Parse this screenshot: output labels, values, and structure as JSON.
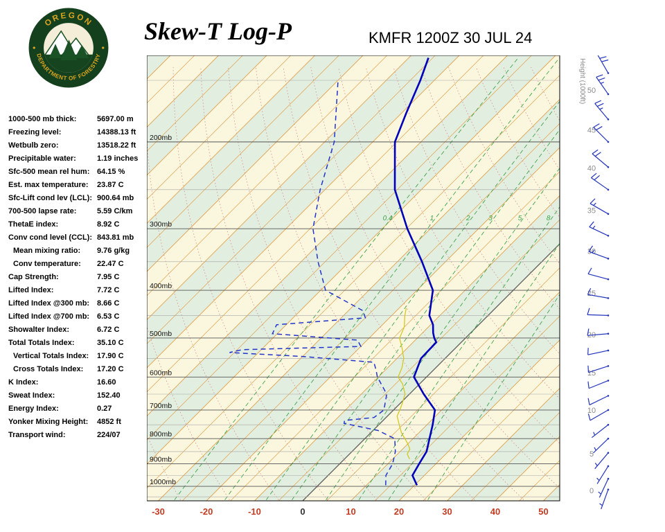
{
  "header": {
    "title": "Skew-T Log-P",
    "station": "KMFR 1200Z 30 JUL 24"
  },
  "logo": {
    "top": "OREGON",
    "bottom": "DEPARTMENT OF FORESTRY"
  },
  "stats": [
    {
      "label": "1000-500 mb thick:",
      "value": "5697.00 m",
      "indent": false
    },
    {
      "label": "Freezing level:",
      "value": "14388.13 ft",
      "indent": false
    },
    {
      "label": "Wetbulb zero:",
      "value": "13518.22 ft",
      "indent": false
    },
    {
      "label": "Precipitable water:",
      "value": "1.19 inches",
      "indent": false
    },
    {
      "label": "Sfc-500 mean rel hum:",
      "value": "64.15 %",
      "indent": false
    },
    {
      "label": "Est. max temperature:",
      "value": "23.87 C",
      "indent": false
    },
    {
      "label": "Sfc-Lift cond lev (LCL):",
      "value": "900.64 mb",
      "indent": false
    },
    {
      "label": "700-500 lapse rate:",
      "value": "5.59 C/km",
      "indent": false
    },
    {
      "label": "ThetaE index:",
      "value": "8.92 C",
      "indent": false
    },
    {
      "label": "Conv cond level (CCL):",
      "value": "843.81 mb",
      "indent": false
    },
    {
      "label": "Mean mixing ratio:",
      "value": "9.76 g/kg",
      "indent": true
    },
    {
      "label": "Conv temperature:",
      "value": "22.47 C",
      "indent": true
    },
    {
      "label": "Cap Strength:",
      "value": "7.95 C",
      "indent": false
    },
    {
      "label": "Lifted Index:",
      "value": "7.72 C",
      "indent": false
    },
    {
      "label": "Lifted Index @300 mb:",
      "value": "8.66 C",
      "indent": false
    },
    {
      "label": "Lifted Index @700 mb:",
      "value": "6.53 C",
      "indent": false
    },
    {
      "label": "Showalter Index:",
      "value": "6.72 C",
      "indent": false
    },
    {
      "label": "Total Totals Index:",
      "value": "35.10 C",
      "indent": false
    },
    {
      "label": "Vertical Totals Index:",
      "value": "17.90 C",
      "indent": true
    },
    {
      "label": "Cross Totals Index:",
      "value": "17.20 C",
      "indent": true
    },
    {
      "label": "K Index:",
      "value": "16.60",
      "indent": false
    },
    {
      "label": "Sweat Index:",
      "value": "152.40",
      "indent": false
    },
    {
      "label": "Energy Index:",
      "value": "0.27",
      "indent": false
    },
    {
      "label": "Yonker Mixing Height:",
      "value": "4852 ft",
      "indent": false
    },
    {
      "label": "Transport wind:",
      "value": "224/07",
      "indent": false
    }
  ],
  "chart_data": {
    "type": "skewt-log-p",
    "station": "KMFR",
    "valid_time": "1200Z 30 JUL 24",
    "x_axis": {
      "unit": "C",
      "ticks": [
        -30,
        -20,
        -10,
        0,
        10,
        20,
        30,
        40,
        50
      ]
    },
    "pressure_ticks": [
      200,
      300,
      400,
      500,
      600,
      700,
      800,
      900,
      1000
    ],
    "pressure_unit": "mb",
    "minor_pressure_lines": [
      150,
      250,
      350,
      450,
      550,
      650,
      750,
      850,
      950,
      1050
    ],
    "isotherm_step_c": 5,
    "band_step_c": 10,
    "dry_adiabats": {
      "theta_min": -60,
      "theta_max": 160,
      "step": 10
    },
    "mixing_ratio_lines": [
      0.4,
      1,
      2,
      3,
      5,
      8,
      12,
      20
    ],
    "mixing_ratio_labeled": [
      0.4,
      1,
      2,
      3,
      5,
      8
    ],
    "height_scale": {
      "title": "Height (1000ft)",
      "labels": [
        {
          "t": "0",
          "p": 1020
        },
        {
          "t": "5",
          "p": 858
        },
        {
          "t": "10",
          "p": 700
        },
        {
          "t": "15",
          "p": 588
        },
        {
          "t": "20",
          "p": 492
        },
        {
          "t": "25",
          "p": 405
        },
        {
          "t": "30",
          "p": 333
        },
        {
          "t": "35",
          "p": 275
        },
        {
          "t": "40",
          "p": 226
        },
        {
          "t": "45",
          "p": 189
        },
        {
          "t": "50",
          "p": 157
        }
      ]
    },
    "series": {
      "temperature": [
        [
          995,
          20.5
        ],
        [
          950,
          17.5
        ],
        [
          900,
          16.5
        ],
        [
          850,
          15.5
        ],
        [
          800,
          13.4
        ],
        [
          750,
          11.2
        ],
        [
          700,
          8.6
        ],
        [
          650,
          3.0
        ],
        [
          600,
          -2.6
        ],
        [
          550,
          -5.0
        ],
        [
          510,
          -5.2
        ],
        [
          500,
          -6.5
        ],
        [
          488,
          -7.8
        ],
        [
          470,
          -9.5
        ],
        [
          450,
          -12.2
        ],
        [
          400,
          -16.7
        ],
        [
          350,
          -24.9
        ],
        [
          300,
          -34.8
        ],
        [
          250,
          -45.5
        ],
        [
          200,
          -55.4
        ],
        [
          175,
          -59.0
        ],
        [
          150,
          -62.9
        ],
        [
          135,
          -65.9
        ]
      ],
      "dewpoint": [
        [
          995,
          14
        ],
        [
          950,
          12
        ],
        [
          900,
          11
        ],
        [
          850,
          9
        ],
        [
          800,
          6.2
        ],
        [
          770,
          1
        ],
        [
          745,
          -7.5
        ],
        [
          735,
          -8
        ],
        [
          725,
          -2.5
        ],
        [
          700,
          -2
        ],
        [
          650,
          -4.7
        ],
        [
          600,
          -10.2
        ],
        [
          580,
          -12
        ],
        [
          560,
          -14
        ],
        [
          545,
          -30
        ],
        [
          535,
          -46
        ],
        [
          528,
          -44
        ],
        [
          520,
          -20
        ],
        [
          505,
          -22
        ],
        [
          490,
          -41
        ],
        [
          470,
          -42
        ],
        [
          455,
          -25
        ],
        [
          440,
          -27
        ],
        [
          400,
          -39
        ],
        [
          350,
          -46.5
        ],
        [
          300,
          -54.4
        ],
        [
          250,
          -61
        ],
        [
          200,
          -68
        ],
        [
          150,
          -80
        ]
      ],
      "wetbulb": [
        [
          880,
          13.5
        ],
        [
          860,
          12
        ],
        [
          840,
          11.5
        ],
        [
          820,
          10
        ],
        [
          800,
          8.3
        ],
        [
          780,
          6.5
        ],
        [
          760,
          5
        ],
        [
          740,
          3.5
        ],
        [
          720,
          2
        ],
        [
          700,
          1.3
        ],
        [
          680,
          0.5
        ],
        [
          650,
          -0.9
        ],
        [
          620,
          -3.5
        ],
        [
          600,
          -5.9
        ],
        [
          575,
          -7
        ],
        [
          550,
          -8.6
        ],
        [
          525,
          -11
        ],
        [
          500,
          -13.7
        ],
        [
          475,
          -15
        ],
        [
          450,
          -17.3
        ],
        [
          435,
          -18.5
        ]
      ]
    },
    "wind_barbs": [
      {
        "p": 145,
        "dir": 330,
        "spd": 30
      },
      {
        "p": 160,
        "dir": 325,
        "spd": 25
      },
      {
        "p": 180,
        "dir": 320,
        "spd": 25
      },
      {
        "p": 200,
        "dir": 315,
        "spd": 20
      },
      {
        "p": 225,
        "dir": 310,
        "spd": 20
      },
      {
        "p": 250,
        "dir": 305,
        "spd": 20
      },
      {
        "p": 280,
        "dir": 300,
        "spd": 15
      },
      {
        "p": 310,
        "dir": 295,
        "spd": 15
      },
      {
        "p": 345,
        "dir": 290,
        "spd": 15
      },
      {
        "p": 380,
        "dir": 285,
        "spd": 10
      },
      {
        "p": 415,
        "dir": 280,
        "spd": 10
      },
      {
        "p": 450,
        "dir": 272,
        "spd": 10
      },
      {
        "p": 490,
        "dir": 265,
        "spd": 10
      },
      {
        "p": 530,
        "dir": 258,
        "spd": 10
      },
      {
        "p": 570,
        "dir": 252,
        "spd": 10
      },
      {
        "p": 610,
        "dir": 248,
        "spd": 10
      },
      {
        "p": 655,
        "dir": 244,
        "spd": 10
      },
      {
        "p": 700,
        "dir": 240,
        "spd": 10
      },
      {
        "p": 750,
        "dir": 232,
        "spd": 5
      },
      {
        "p": 800,
        "dir": 226,
        "spd": 5
      },
      {
        "p": 855,
        "dir": 220,
        "spd": 5
      },
      {
        "p": 910,
        "dir": 212,
        "spd": 5
      },
      {
        "p": 965,
        "dir": 205,
        "spd": 5
      },
      {
        "p": 1015,
        "dir": 200,
        "spd": 5
      }
    ],
    "colors": {
      "band_yellow": "#FBF7DF",
      "band_green": "#E2EEDF",
      "isotherm": "#DFA14F",
      "isotherm_zero": "#5A5A5A",
      "pressure_major": "#555555",
      "pressure_minor": "#A6A6A6",
      "dry_adiabat": "#D98A8A",
      "mixing_ratio": "#3FA34D",
      "temperature": "#0000BB",
      "dewpoint": "#2233CC",
      "wetbulb": "#D4C820",
      "wind_barb": "#2233BB",
      "height_text": "#8A8A8A",
      "axis_red": "#C23B22",
      "axis_zero": "#333333",
      "pressure_label": "#111111"
    }
  }
}
